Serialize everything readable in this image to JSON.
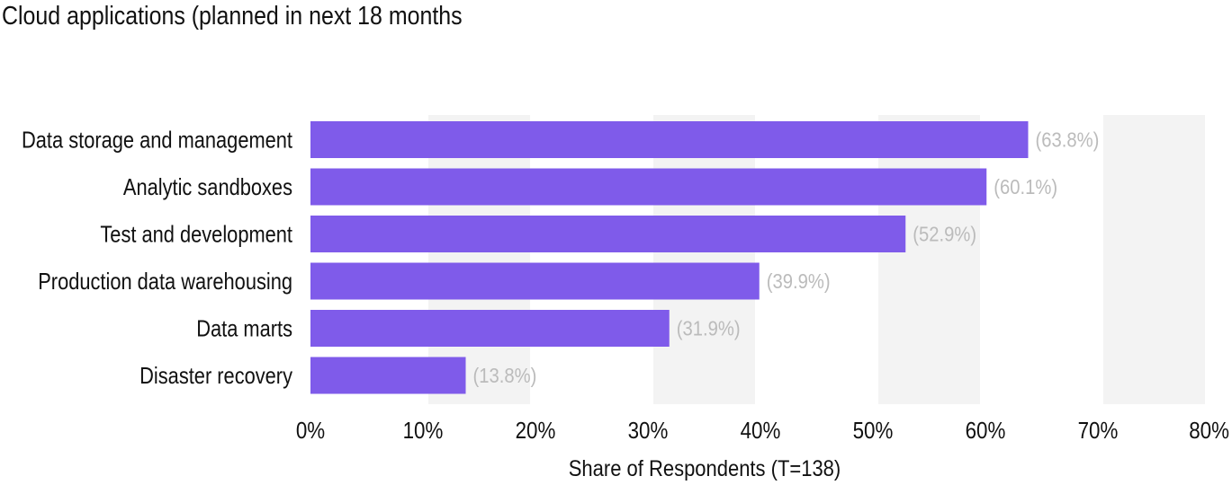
{
  "chart_data": {
    "type": "bar",
    "orientation": "horizontal",
    "title": "Cloud applications (planned in next 18 months",
    "xlabel": "Share of Respondents (T=138)",
    "ylabel": "",
    "xlim": [
      0,
      80
    ],
    "grid": true,
    "categories": [
      "Data storage and management",
      "Analytic sandboxes",
      "Test and development",
      "Production data warehousing",
      "Data marts",
      "Disaster recovery"
    ],
    "values": [
      63.8,
      60.1,
      52.9,
      39.9,
      31.9,
      13.8
    ],
    "value_labels": [
      "(63.8%)",
      "(60.1%)",
      "(52.9%)",
      "(39.9%)",
      "(31.9%)",
      "(13.8%)"
    ],
    "ticks": [
      0,
      10,
      20,
      30,
      40,
      50,
      60,
      70,
      80
    ],
    "tick_labels": [
      "0%",
      "10%",
      "20%",
      "30%",
      "40%",
      "50%",
      "60%",
      "70%",
      "80%"
    ],
    "colors": {
      "bar": "#7f5bea",
      "band": "#f3f3f3",
      "value_label": "#bbbbbb"
    }
  }
}
